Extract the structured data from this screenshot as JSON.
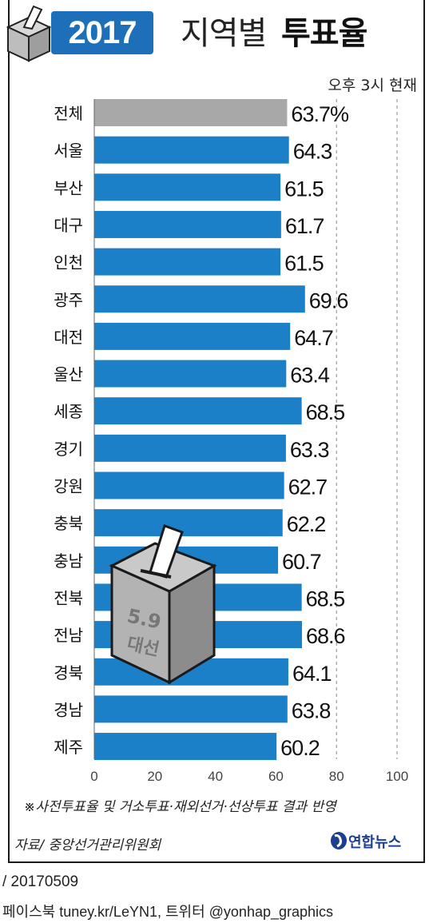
{
  "header": {
    "year": "2017",
    "title_light": "지역별",
    "title_bold": "투표율",
    "subtitle": "오후 3시 현재"
  },
  "ballot_box": {
    "label_number": "5.9",
    "label_text": "대선"
  },
  "colors": {
    "bar": "#1c80c8",
    "bar_total": "#a8a8a8",
    "accent": "#1c6fb8"
  },
  "chart_data": {
    "type": "bar",
    "orientation": "horizontal",
    "categories": [
      "전체",
      "서울",
      "부산",
      "대구",
      "인천",
      "광주",
      "대전",
      "울산",
      "세종",
      "경기",
      "강원",
      "충북",
      "충남",
      "전북",
      "전남",
      "경북",
      "경남",
      "제주"
    ],
    "values": [
      63.7,
      64.3,
      61.5,
      61.7,
      61.5,
      69.6,
      64.7,
      63.4,
      68.5,
      63.3,
      62.7,
      62.2,
      60.7,
      68.5,
      68.6,
      64.1,
      63.8,
      60.2
    ],
    "value_labels": [
      "63.7%",
      "64.3",
      "61.5",
      "61.7",
      "61.5",
      "69.6",
      "64.7",
      "63.4",
      "68.5",
      "63.3",
      "62.7",
      "62.2",
      "60.7",
      "68.5",
      "68.6",
      "64.1",
      "63.8",
      "60.2"
    ],
    "xlim": [
      0,
      100
    ],
    "x_ticks": [
      "0",
      "20",
      "40",
      "60",
      "80",
      "100"
    ],
    "x_tick_values": [
      0,
      20,
      40,
      60,
      80,
      100
    ],
    "grid": "dashed vertical at 80 and 100",
    "unit": "%"
  },
  "footer": {
    "note": "※사전투표율 및 거소투표·재외선거·선상투표 결과 반영",
    "source": "자료/ 중앙선거관리위원회",
    "brand": "연합뉴스",
    "date": "/ 20170509",
    "social": "페이스북 tuney.kr/LeYN1, 트위터 @yonhap_graphics"
  }
}
